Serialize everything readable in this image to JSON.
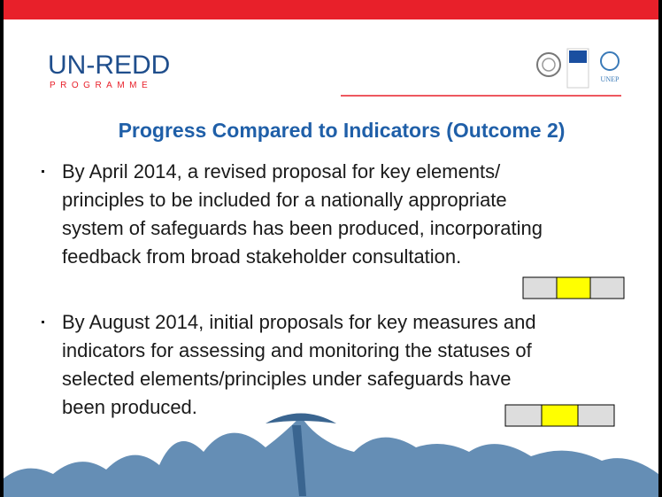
{
  "header": {
    "logo_main": "UN-REDD",
    "logo_sub": "PROGRAMME",
    "partner_label": "UNEP"
  },
  "title": "Progress Compared to Indicators (Outcome 2)",
  "bullets": [
    [
      "By April 2014, a revised proposal for key elements/",
      "principles to be included for a nationally appropriate",
      "system of safeguards has been produced, incorporating",
      "feedback from broad stakeholder consultation."
    ],
    [
      "By August 2014, initial proposals for key measures and",
      "indicators for assessing and monitoring the statuses of",
      "selected elements/principles under safeguards have",
      "been produced."
    ]
  ]
}
